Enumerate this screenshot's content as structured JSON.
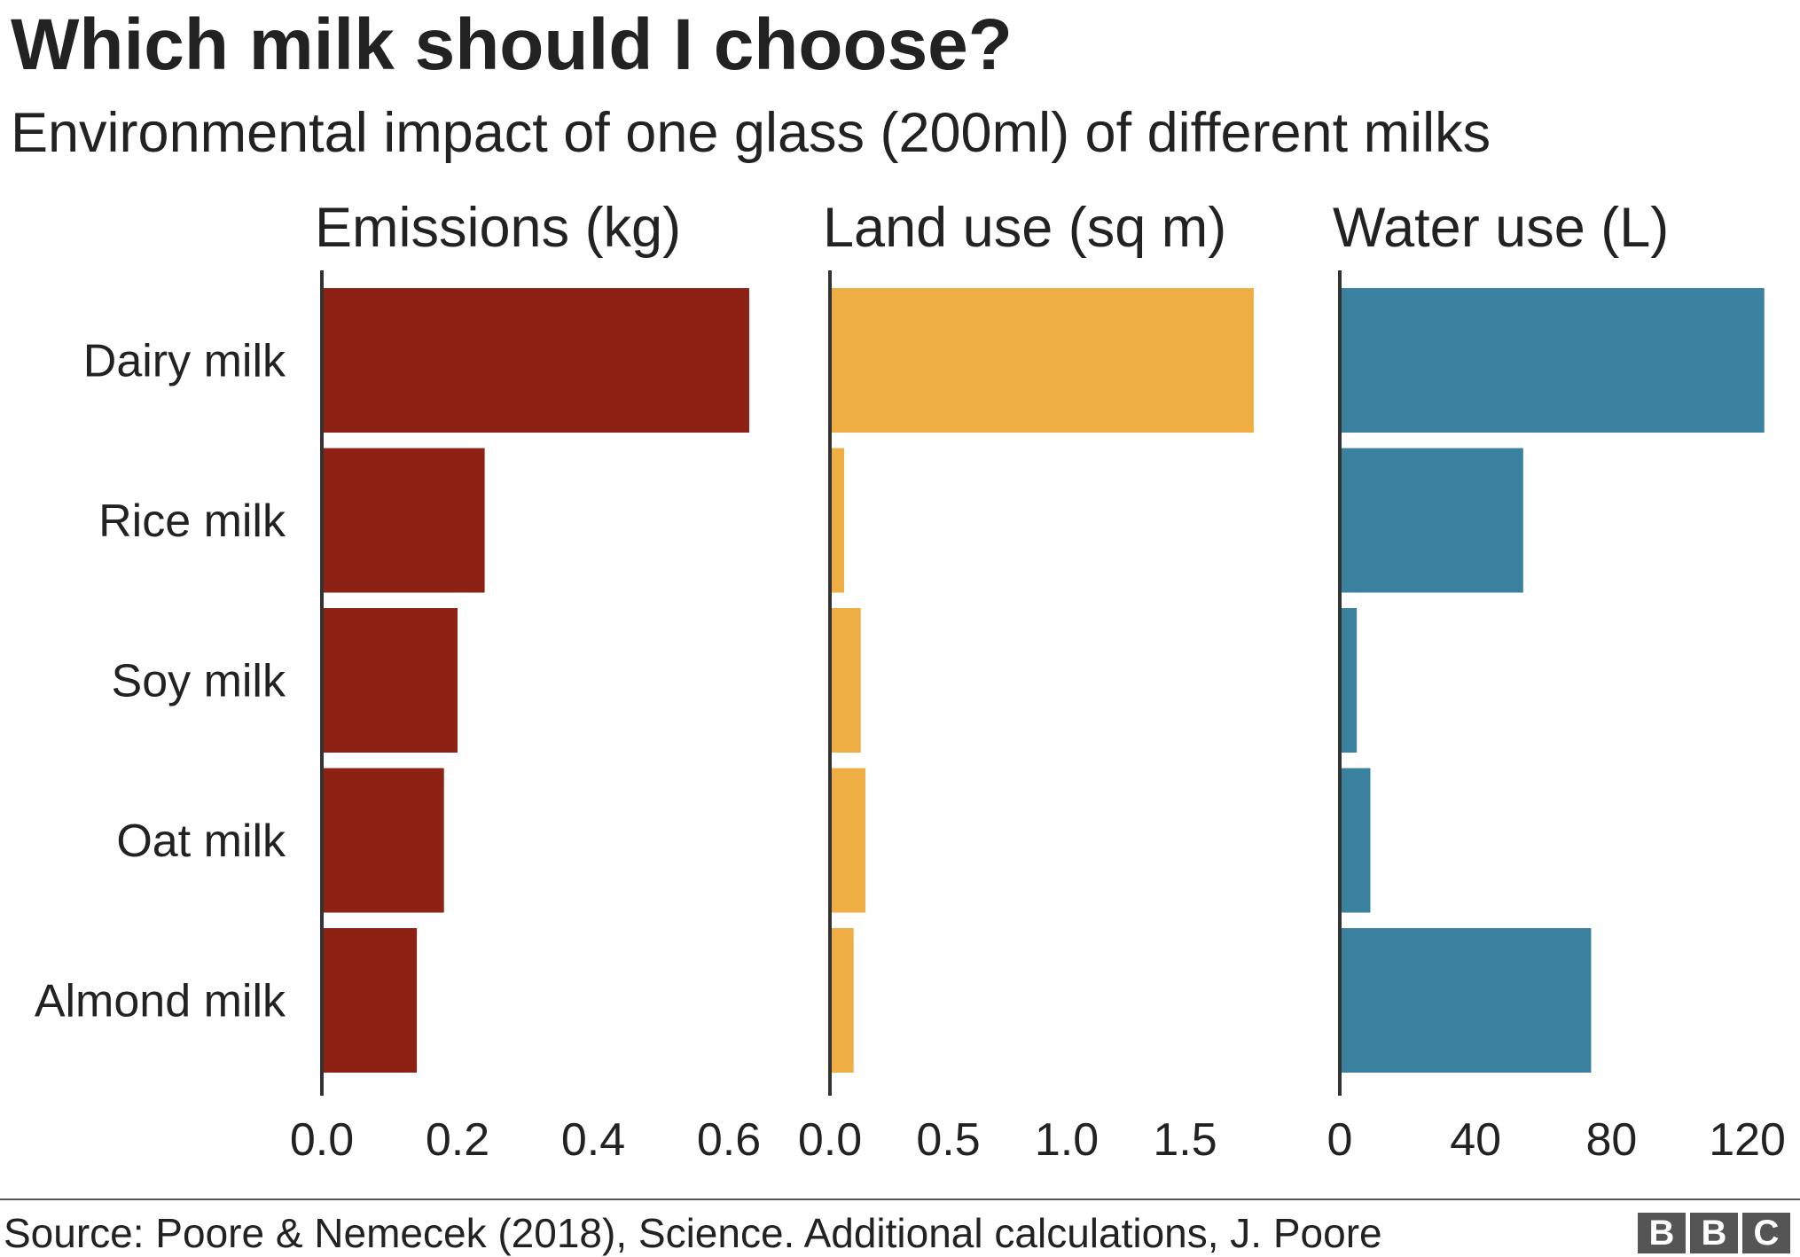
{
  "title": "Which milk should I choose?",
  "subtitle": "Environmental impact of one glass (200ml) of different milks",
  "source": "Source: Poore & Nemecek (2018), Science. Additional calculations, J. Poore",
  "logo": {
    "letters": [
      "B",
      "B",
      "C"
    ]
  },
  "chart_data": [
    {
      "type": "bar",
      "orientation": "horizontal",
      "title": "Emissions (kg)",
      "color": "#8c2114",
      "categories": [
        "Dairy milk",
        "Rice milk",
        "Soy milk",
        "Oat milk",
        "Almond milk"
      ],
      "values": [
        0.63,
        0.24,
        0.2,
        0.18,
        0.14
      ],
      "ticks": [
        0.0,
        0.2,
        0.4,
        0.6
      ],
      "tick_labels": [
        "0.0",
        "0.2",
        "0.4",
        "0.6"
      ],
      "xlim": [
        0,
        0.65
      ]
    },
    {
      "type": "bar",
      "orientation": "horizontal",
      "title": "Land use (sq m)",
      "color": "#efae43",
      "categories": [
        "Dairy milk",
        "Rice milk",
        "Soy milk",
        "Oat milk",
        "Almond milk"
      ],
      "values": [
        1.79,
        0.06,
        0.13,
        0.15,
        0.1
      ],
      "ticks": [
        0.0,
        0.5,
        1.0,
        1.5
      ],
      "tick_labels": [
        "0.0",
        "0.5",
        "1.0",
        "1.5"
      ],
      "xlim": [
        0,
        1.9
      ]
    },
    {
      "type": "bar",
      "orientation": "horizontal",
      "title": "Water use (L)",
      "color": "#3a819f",
      "categories": [
        "Dairy milk",
        "Rice milk",
        "Soy milk",
        "Oat milk",
        "Almond milk"
      ],
      "values": [
        125,
        54,
        5,
        9,
        74
      ],
      "ticks": [
        0,
        40,
        80,
        120
      ],
      "tick_labels": [
        "0",
        "40",
        "80",
        "120"
      ],
      "xlim": [
        0,
        130
      ]
    }
  ]
}
